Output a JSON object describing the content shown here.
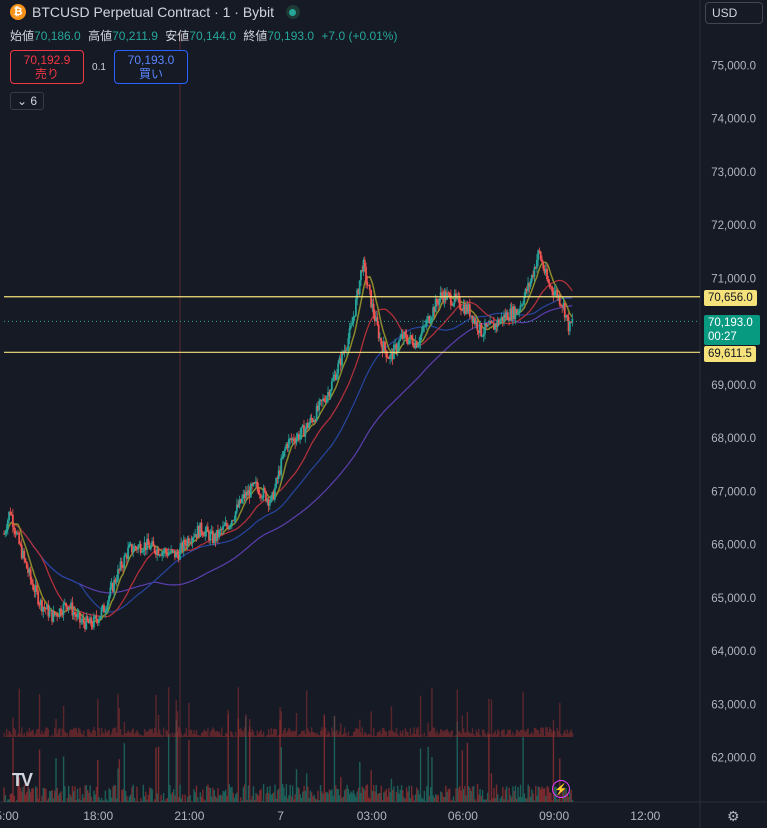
{
  "header": {
    "logo_letter": "₿",
    "title": "BTCUSD Perpetual Contract · 1 · Bybit",
    "ohlc": [
      {
        "label": "始値",
        "value": "70,186.0"
      },
      {
        "label": "高値",
        "value": "70,211.9"
      },
      {
        "label": "安値",
        "value": "70,144.0"
      },
      {
        "label": "終値",
        "value": "70,193.0"
      },
      {
        "label": "",
        "value": "+7.0 (+0.01%)"
      }
    ]
  },
  "trade": {
    "sell_price": "70,192.9",
    "sell_label": "売り",
    "spread": "0.1",
    "buy_price": "70,193.0",
    "buy_label": "買い"
  },
  "indicator_toggle": "6",
  "currency": "USD",
  "tags": {
    "upper_line": "70,656.0",
    "last_price": "70,193.0",
    "countdown": "00:27",
    "lower_line": "69,611.5"
  },
  "colors": {
    "background": "#161a25",
    "up": "#26a69a",
    "down": "#ef5350",
    "yellow_line": "#f5e27a",
    "ma_fast": "#8b8b2a",
    "ma_mid": "#b0303a",
    "ma_slow_blue": "#2646a0",
    "ma_slow_purple": "#5b3fb0"
  },
  "icons": [
    "bitcoin-logo",
    "live-status-dot",
    "chevron-down-icon",
    "tradingview-logo",
    "bolt-icon",
    "gear-icon"
  ],
  "chart_data": {
    "type": "candlestick",
    "y_axis_ticks": [
      "75,000.0",
      "74,000.0",
      "73,000.0",
      "72,000.0",
      "71,000.0",
      "70,000.0",
      "69,000.0",
      "68,000.0",
      "67,000.0",
      "66,000.0",
      "65,000.0",
      "64,000.0",
      "63,000.0",
      "62,000.0"
    ],
    "ylim": [
      61600,
      75400
    ],
    "x_axis_ticks": [
      "5:00",
      "18:00",
      "21:00",
      "7",
      "03:00",
      "06:00",
      "09:00",
      "12:00"
    ],
    "x_tick_hours": [
      15,
      18,
      21,
      24,
      27,
      30,
      33,
      36
    ],
    "xlim_hours": [
      14.9,
      37.8
    ],
    "close_path": [
      [
        14.9,
        66200
      ],
      [
        15.1,
        66650
      ],
      [
        15.4,
        66000
      ],
      [
        15.8,
        65300
      ],
      [
        16.1,
        64900
      ],
      [
        16.5,
        64650
      ],
      [
        17.0,
        64900
      ],
      [
        17.4,
        64550
      ],
      [
        17.8,
        64500
      ],
      [
        18.2,
        64800
      ],
      [
        18.6,
        65400
      ],
      [
        19.0,
        65900
      ],
      [
        19.5,
        66000
      ],
      [
        20.0,
        65900
      ],
      [
        20.6,
        65800
      ],
      [
        21.0,
        66150
      ],
      [
        21.4,
        66300
      ],
      [
        21.8,
        66100
      ],
      [
        22.3,
        66400
      ],
      [
        22.8,
        66900
      ],
      [
        23.2,
        67100
      ],
      [
        23.7,
        66800
      ],
      [
        24.2,
        67900
      ],
      [
        24.7,
        68100
      ],
      [
        25.1,
        68400
      ],
      [
        25.6,
        68900
      ],
      [
        26.0,
        69500
      ],
      [
        26.3,
        70000
      ],
      [
        26.5,
        70600
      ],
      [
        26.7,
        71300
      ],
      [
        27.0,
        70500
      ],
      [
        27.3,
        69800
      ],
      [
        27.6,
        69500
      ],
      [
        28.0,
        69900
      ],
      [
        28.5,
        69800
      ],
      [
        29.0,
        70400
      ],
      [
        29.3,
        70700
      ],
      [
        29.7,
        70600
      ],
      [
        30.2,
        70400
      ],
      [
        30.6,
        70000
      ],
      [
        31.0,
        70100
      ],
      [
        31.4,
        70300
      ],
      [
        31.8,
        70400
      ],
      [
        32.2,
        70900
      ],
      [
        32.5,
        71500
      ],
      [
        32.8,
        70900
      ],
      [
        33.1,
        70700
      ],
      [
        33.3,
        70500
      ],
      [
        33.5,
        70050
      ],
      [
        33.6,
        70193
      ]
    ],
    "horizontal_lines": [
      70656.0,
      69611.5
    ],
    "last_price": 70193.0
  }
}
